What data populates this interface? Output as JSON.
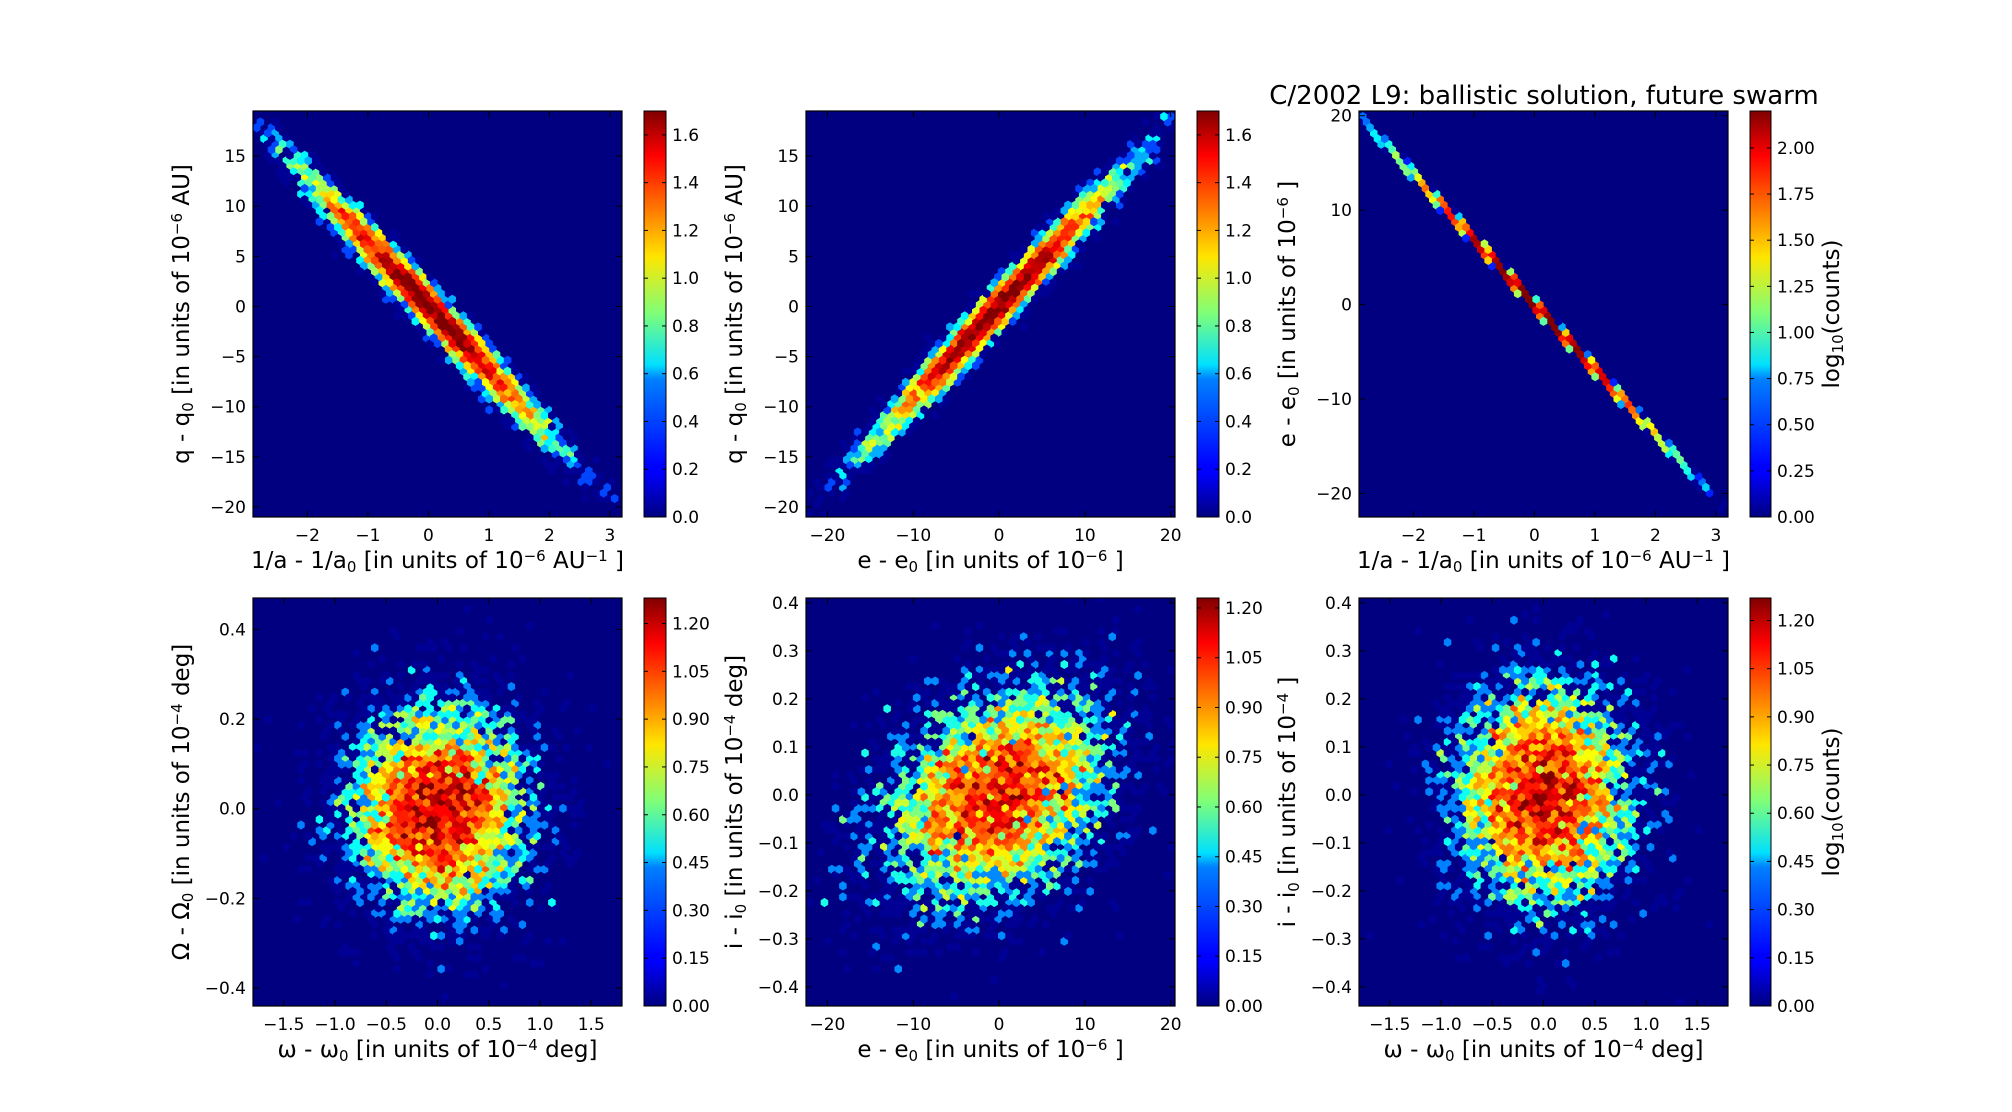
{
  "title": "C/2002 L9:  ballistic solution, future swarm",
  "colormap": "jet",
  "background_color": "#000080",
  "chart_data": [
    {
      "type": "heatmap",
      "subtype": "hexbin",
      "xlabel": [
        {
          "t": "1/a - 1/a"
        },
        {
          "sub": "0"
        },
        {
          "t": " [in units of 10"
        },
        {
          "sup": "−6"
        },
        {
          "t": " AU"
        },
        {
          "sup": "−1"
        },
        {
          "t": " ]"
        }
      ],
      "ylabel": [
        {
          "t": "q - q"
        },
        {
          "sub": "0"
        },
        {
          "t": " [in units of 10"
        },
        {
          "sup": "−6"
        },
        {
          "t": "  AU]"
        }
      ],
      "xlim": [
        -2.9,
        3.2
      ],
      "ylim": [
        -21,
        19.5
      ],
      "xticks": [
        "−2",
        "−1",
        "0",
        "1",
        "2",
        "3"
      ],
      "xtick_values": [
        -2,
        -1,
        0,
        1,
        2,
        3
      ],
      "yticks": [
        "−20",
        "−15",
        "−10",
        "−5",
        "0",
        "5",
        "10",
        "15"
      ],
      "ytick_values": [
        -20,
        -15,
        -10,
        -5,
        0,
        5,
        10,
        15
      ],
      "colorbar": {
        "range": [
          0,
          1.7
        ],
        "ticks": [
          "0.0",
          "0.2",
          "0.4",
          "0.6",
          "0.8",
          "1.0",
          "1.2",
          "1.4",
          "1.6"
        ],
        "tick_values": [
          0,
          0.2,
          0.4,
          0.6,
          0.8,
          1.0,
          1.2,
          1.4,
          1.6
        ],
        "label": ""
      },
      "distribution": {
        "mean": [
          0,
          0
        ],
        "sd": [
          1.0,
          6.5
        ],
        "corr": -0.985
      }
    },
    {
      "type": "heatmap",
      "subtype": "hexbin",
      "xlabel": [
        {
          "t": "e - e"
        },
        {
          "sub": "0"
        },
        {
          "t": " [in units of 10"
        },
        {
          "sup": "−6"
        },
        {
          "t": " ]"
        }
      ],
      "ylabel": [
        {
          "t": "q - q"
        },
        {
          "sub": "0"
        },
        {
          "t": " [in units of 10"
        },
        {
          "sup": "−6"
        },
        {
          "t": "  AU]"
        }
      ],
      "xlim": [
        -22.5,
        20.5
      ],
      "ylim": [
        -21,
        19.5
      ],
      "xticks": [
        "−20",
        "−10",
        "0",
        "10",
        "20"
      ],
      "xtick_values": [
        -20,
        -10,
        0,
        10,
        20
      ],
      "yticks": [
        "−20",
        "−15",
        "−10",
        "−5",
        "0",
        "5",
        "10",
        "15"
      ],
      "ytick_values": [
        -20,
        -15,
        -10,
        -5,
        0,
        5,
        10,
        15
      ],
      "colorbar": {
        "range": [
          0,
          1.7
        ],
        "ticks": [
          "0.0",
          "0.2",
          "0.4",
          "0.6",
          "0.8",
          "1.0",
          "1.2",
          "1.4",
          "1.6"
        ],
        "tick_values": [
          0,
          0.2,
          0.4,
          0.6,
          0.8,
          1.0,
          1.2,
          1.4,
          1.6
        ],
        "label": ""
      },
      "distribution": {
        "mean": [
          0,
          0
        ],
        "sd": [
          7.0,
          6.5
        ],
        "corr": 0.985
      }
    },
    {
      "type": "heatmap",
      "subtype": "hexbin",
      "xlabel": [
        {
          "t": "1/a - 1/a"
        },
        {
          "sub": "0"
        },
        {
          "t": " [in units of 10"
        },
        {
          "sup": "−6"
        },
        {
          "t": " AU"
        },
        {
          "sup": "−1"
        },
        {
          "t": " ]"
        }
      ],
      "ylabel": [
        {
          "t": "e - e"
        },
        {
          "sub": "0"
        },
        {
          "t": "  [in units of 10"
        },
        {
          "sup": "−6"
        },
        {
          "t": " ]"
        }
      ],
      "xlim": [
        -2.9,
        3.2
      ],
      "ylim": [
        -22.5,
        20.5
      ],
      "xticks": [
        "−2",
        "−1",
        "0",
        "1",
        "2",
        "3"
      ],
      "xtick_values": [
        -2,
        -1,
        0,
        1,
        2,
        3
      ],
      "yticks": [
        "−20",
        "−10",
        "0",
        "10",
        "20"
      ],
      "ytick_values": [
        -20,
        -10,
        0,
        10,
        20
      ],
      "colorbar": {
        "range": [
          0,
          2.2
        ],
        "ticks": [
          "0.00",
          "0.25",
          "0.50",
          "0.75",
          "1.00",
          "1.25",
          "1.50",
          "1.75",
          "2.00"
        ],
        "tick_values": [
          0,
          0.25,
          0.5,
          0.75,
          1.0,
          1.25,
          1.5,
          1.75,
          2.0
        ],
        "label": [
          {
            "t": "log"
          },
          {
            "sub": "10"
          },
          {
            "t": "(counts)"
          }
        ]
      },
      "distribution": {
        "mean": [
          0,
          0
        ],
        "sd": [
          1.0,
          6.9
        ],
        "corr": -0.9999
      }
    },
    {
      "type": "heatmap",
      "subtype": "hexbin",
      "xlabel": [
        {
          "t": "ω - ω"
        },
        {
          "sub": "0"
        },
        {
          "t": " [in units of 10"
        },
        {
          "sup": "−4"
        },
        {
          "t": "  deg]"
        }
      ],
      "ylabel": [
        {
          "t": "Ω - Ω"
        },
        {
          "sub": "0"
        },
        {
          "t": "  [in units of 10"
        },
        {
          "sup": "−4"
        },
        {
          "t": "  deg]"
        }
      ],
      "xlim": [
        -1.8,
        1.8
      ],
      "ylim": [
        -0.44,
        0.47
      ],
      "xticks": [
        "−1.5",
        "−1.0",
        "−0.5",
        "0.0",
        "0.5",
        "1.0",
        "1.5"
      ],
      "xtick_values": [
        -1.5,
        -1.0,
        -0.5,
        0,
        0.5,
        1.0,
        1.5
      ],
      "yticks": [
        "−0.4",
        "−0.2",
        "0.0",
        "0.2",
        "0.4"
      ],
      "ytick_values": [
        -0.4,
        -0.2,
        0,
        0.2,
        0.4
      ],
      "colorbar": {
        "range": [
          0,
          1.28
        ],
        "ticks": [
          "0.00",
          "0.15",
          "0.30",
          "0.45",
          "0.60",
          "0.75",
          "0.90",
          "1.05",
          "1.20"
        ],
        "tick_values": [
          0,
          0.15,
          0.3,
          0.45,
          0.6,
          0.75,
          0.9,
          1.05,
          1.2
        ],
        "label": ""
      },
      "distribution": {
        "mean": [
          0,
          0
        ],
        "sd": [
          0.45,
          0.12
        ],
        "corr": 0.0
      }
    },
    {
      "type": "heatmap",
      "subtype": "hexbin",
      "xlabel": [
        {
          "t": "e - e"
        },
        {
          "sub": "0"
        },
        {
          "t": " [in units of 10"
        },
        {
          "sup": "−6"
        },
        {
          "t": " ]"
        }
      ],
      "ylabel": [
        {
          "t": "i - i"
        },
        {
          "sub": "0"
        },
        {
          "t": "  [in units of 10"
        },
        {
          "sup": "−4"
        },
        {
          "t": "  deg]"
        }
      ],
      "xlim": [
        -22.5,
        20.5
      ],
      "ylim": [
        -0.44,
        0.41
      ],
      "xticks": [
        "−20",
        "−10",
        "0",
        "10",
        "20"
      ],
      "xtick_values": [
        -20,
        -10,
        0,
        10,
        20
      ],
      "yticks": [
        "−0.4",
        "−0.3",
        "−0.2",
        "−0.1",
        "0.0",
        "0.1",
        "0.2",
        "0.3",
        "0.4"
      ],
      "ytick_values": [
        -0.4,
        -0.3,
        -0.2,
        -0.1,
        0,
        0.1,
        0.2,
        0.3,
        0.4
      ],
      "colorbar": {
        "range": [
          0,
          1.23
        ],
        "ticks": [
          "0.00",
          "0.15",
          "0.30",
          "0.45",
          "0.60",
          "0.75",
          "0.90",
          "1.05",
          "1.20"
        ],
        "tick_values": [
          0,
          0.15,
          0.3,
          0.45,
          0.6,
          0.75,
          0.9,
          1.05,
          1.2
        ],
        "label": ""
      },
      "distribution": {
        "mean": [
          0,
          0
        ],
        "sd": [
          7.0,
          0.12
        ],
        "corr": 0.3
      }
    },
    {
      "type": "heatmap",
      "subtype": "hexbin",
      "xlabel": [
        {
          "t": "ω - ω"
        },
        {
          "sub": "0"
        },
        {
          "t": " [in units of 10"
        },
        {
          "sup": "−4"
        },
        {
          "t": "  deg]"
        }
      ],
      "ylabel": [
        {
          "t": "i - i"
        },
        {
          "sub": "0"
        },
        {
          "t": "  [in units of 10"
        },
        {
          "sup": "−4"
        },
        {
          "t": " ]"
        }
      ],
      "xlim": [
        -1.8,
        1.8
      ],
      "ylim": [
        -0.44,
        0.41
      ],
      "xticks": [
        "−1.5",
        "−1.0",
        "−0.5",
        "0.0",
        "0.5",
        "1.0",
        "1.5"
      ],
      "xtick_values": [
        -1.5,
        -1.0,
        -0.5,
        0,
        0.5,
        1.0,
        1.5
      ],
      "yticks": [
        "−0.4",
        "−0.3",
        "−0.2",
        "−0.1",
        "0.0",
        "0.1",
        "0.2",
        "0.3",
        "0.4"
      ],
      "ytick_values": [
        -0.4,
        -0.3,
        -0.2,
        -0.1,
        0,
        0.1,
        0.2,
        0.3,
        0.4
      ],
      "colorbar": {
        "range": [
          0,
          1.27
        ],
        "ticks": [
          "0.00",
          "0.15",
          "0.30",
          "0.45",
          "0.60",
          "0.75",
          "0.90",
          "1.05",
          "1.20"
        ],
        "tick_values": [
          0,
          0.15,
          0.3,
          0.45,
          0.6,
          0.75,
          0.9,
          1.05,
          1.2
        ],
        "label": [
          {
            "t": "log"
          },
          {
            "sub": "10"
          },
          {
            "t": "(counts)"
          }
        ]
      },
      "distribution": {
        "mean": [
          0,
          0
        ],
        "sd": [
          0.45,
          0.12
        ],
        "corr": 0.0
      }
    }
  ]
}
